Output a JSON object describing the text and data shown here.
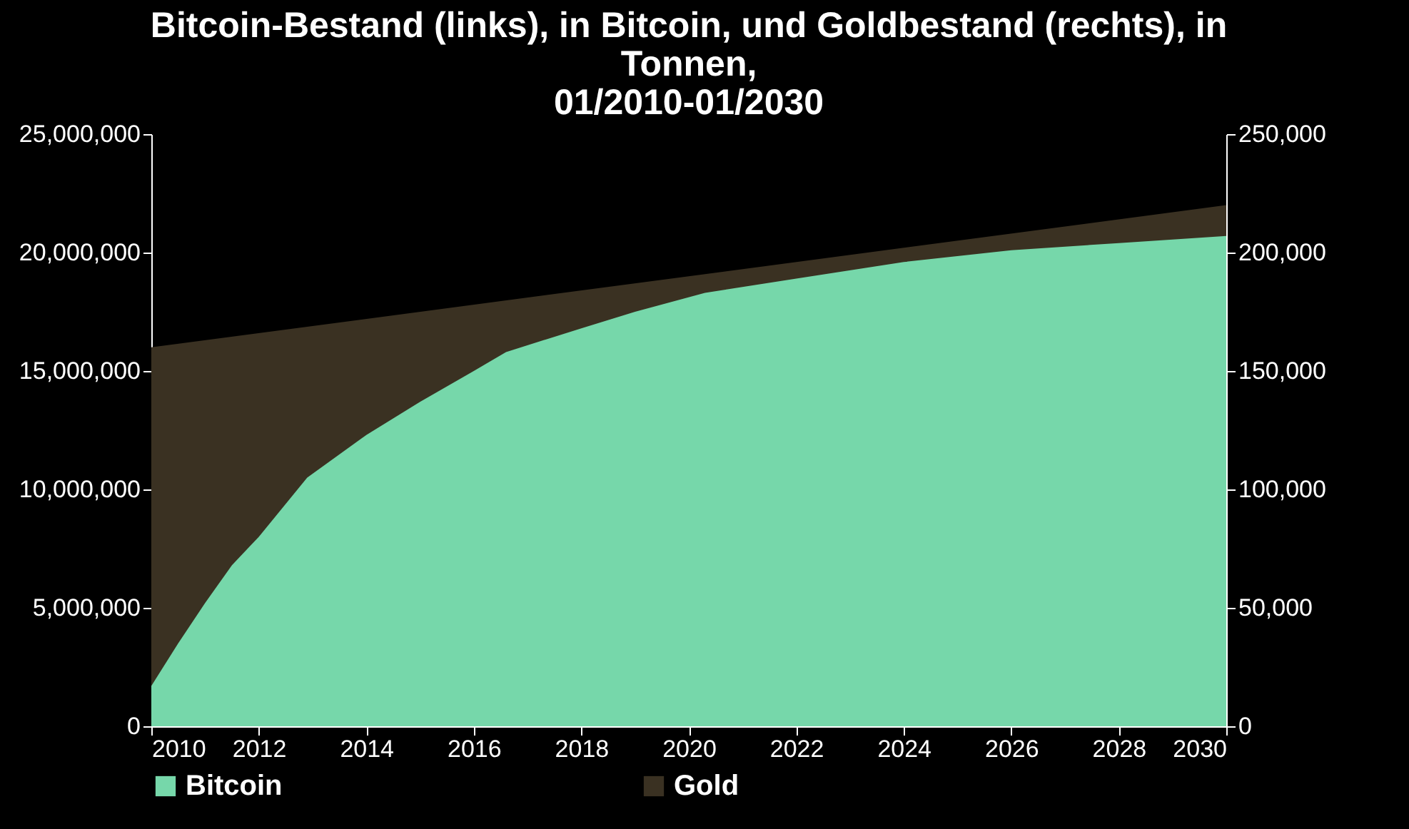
{
  "chart_data": {
    "type": "area",
    "title": "Bitcoin-Bestand (links), in Bitcoin, und Goldbestand (rechts), in\nTonnen,\n01/2010-01/2030",
    "xlim": [
      2010,
      2030
    ],
    "xticks": [
      2010,
      2012,
      2014,
      2016,
      2018,
      2020,
      2022,
      2024,
      2026,
      2028,
      2030
    ],
    "ylim": [
      0,
      25000000
    ],
    "yticks": [
      0,
      {
        "value": 5000000,
        "label": "5,000,000"
      },
      {
        "value": 10000000,
        "label": "10,000,000"
      },
      {
        "value": 15000000,
        "label": "15,000,000"
      },
      {
        "value": 20000000,
        "label": "20,000,000"
      },
      {
        "value": 25000000,
        "label": "25,000,000"
      }
    ],
    "y2lim": [
      0,
      250000
    ],
    "y2ticks": [
      0,
      {
        "value": 50000,
        "label": "50,000"
      },
      {
        "value": 100000,
        "label": "100,000"
      },
      {
        "value": 150000,
        "label": "150,000"
      },
      {
        "value": 200000,
        "label": "200,000"
      },
      {
        "value": 250000,
        "label": "250,000"
      }
    ],
    "legend": "bottom",
    "series": [
      {
        "name": "Bitcoin",
        "color": "#76d7aa",
        "x": [
          2010,
          2010.5,
          2011,
          2011.5,
          2012,
          2012.9,
          2014,
          2015,
          2016,
          2016.6,
          2018,
          2019,
          2020.3,
          2022,
          2024,
          2026,
          2028,
          2030
        ],
        "values": [
          1700000,
          3500000,
          5200000,
          6800000,
          8000000,
          10500000,
          12300000,
          13700000,
          15000000,
          15800000,
          16800000,
          17500000,
          18300000,
          18900000,
          19600000,
          20100000,
          20400000,
          20700000
        ]
      },
      {
        "name": "Gold",
        "color": "#3a3122",
        "axis": "y2",
        "x": [
          2010,
          2030
        ],
        "values": [
          160000,
          220000
        ]
      }
    ]
  }
}
